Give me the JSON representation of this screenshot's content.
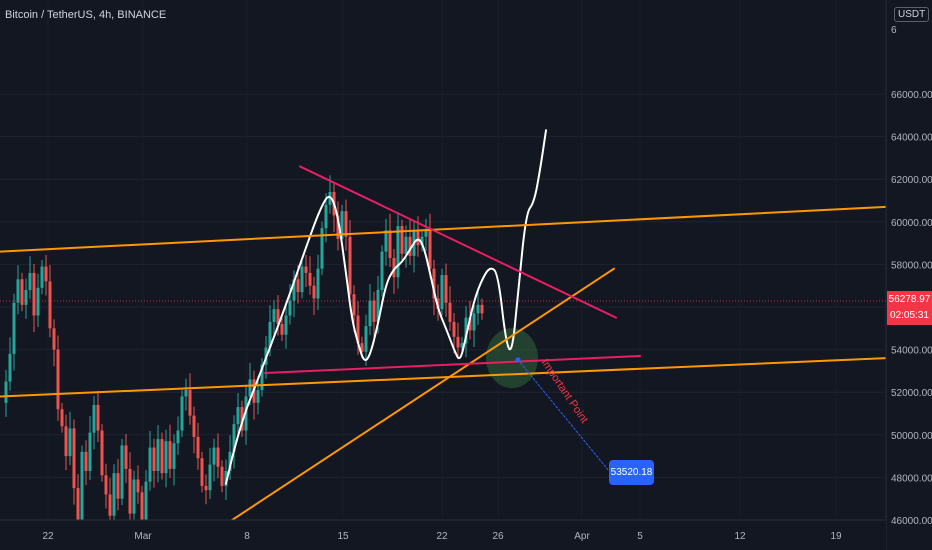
{
  "header": {
    "title": "Bitcoin / TetherUS, 4h, BINANCE",
    "currency_button": "USDT"
  },
  "price_badge": {
    "price": "56278.97",
    "countdown": "02:05:31"
  },
  "annotations": {
    "important_label": "Important Point",
    "target_label": "53520.18"
  },
  "colors": {
    "up": "#26a69a",
    "down": "#ef5350",
    "orange": "#ff9800",
    "pink": "#e91e63",
    "white": "#ffffff",
    "blue": "#2962ff"
  },
  "chart_data": {
    "type": "candlestick",
    "symbol": "BTCUSDT",
    "timeframe": "4h",
    "x_ticks": [
      "22",
      "Mar",
      "8",
      "15",
      "22",
      "26",
      "Apr",
      "5",
      "12",
      "19"
    ],
    "y_ticks": [
      "46000.00",
      "48000.00",
      "50000.00",
      "52000.00",
      "54000.00",
      "56000.00",
      "58000.00",
      "60000.00",
      "62000.00",
      "64000.00",
      "66000.00"
    ],
    "ylim": [
      45000,
      66500
    ],
    "last_price": 56278.97,
    "close_path": [
      [
        2,
        51500
      ],
      [
        6,
        52500
      ],
      [
        10,
        53800
      ],
      [
        14,
        56200
      ],
      [
        18,
        57300
      ],
      [
        22,
        56100
      ],
      [
        26,
        56800
      ],
      [
        30,
        57600
      ],
      [
        34,
        55600
      ],
      [
        38,
        56900
      ],
      [
        42,
        57900
      ],
      [
        46,
        57200
      ],
      [
        50,
        55000
      ],
      [
        54,
        54000
      ],
      [
        58,
        51200
      ],
      [
        62,
        50400
      ],
      [
        66,
        49000
      ],
      [
        70,
        50300
      ],
      [
        74,
        47500
      ],
      [
        78,
        45800
      ],
      [
        82,
        49200
      ],
      [
        86,
        48300
      ],
      [
        90,
        50100
      ],
      [
        94,
        51400
      ],
      [
        98,
        50200
      ],
      [
        102,
        48100
      ],
      [
        106,
        47200
      ],
      [
        110,
        46200
      ],
      [
        114,
        48200
      ],
      [
        118,
        47000
      ],
      [
        122,
        49500
      ],
      [
        126,
        48400
      ],
      [
        130,
        46300
      ],
      [
        134,
        47900
      ],
      [
        138,
        47300
      ],
      [
        142,
        46000
      ],
      [
        146,
        47800
      ],
      [
        150,
        49400
      ],
      [
        154,
        48300
      ],
      [
        158,
        49800
      ],
      [
        162,
        48200
      ],
      [
        166,
        49700
      ],
      [
        170,
        48400
      ],
      [
        174,
        49600
      ],
      [
        178,
        50200
      ],
      [
        182,
        51800
      ],
      [
        186,
        52100
      ],
      [
        190,
        50900
      ],
      [
        194,
        49900
      ],
      [
        198,
        48900
      ],
      [
        202,
        47600
      ],
      [
        206,
        47400
      ],
      [
        210,
        48600
      ],
      [
        214,
        49400
      ],
      [
        218,
        48500
      ],
      [
        222,
        47600
      ],
      [
        226,
        48300
      ],
      [
        230,
        49200
      ],
      [
        234,
        50500
      ],
      [
        238,
        51300
      ],
      [
        242,
        50200
      ],
      [
        246,
        51800
      ],
      [
        250,
        52600
      ],
      [
        254,
        51500
      ],
      [
        258,
        52100
      ],
      [
        262,
        53300
      ],
      [
        266,
        54100
      ],
      [
        270,
        55300
      ],
      [
        274,
        55900
      ],
      [
        278,
        55200
      ],
      [
        282,
        54700
      ],
      [
        286,
        55600
      ],
      [
        290,
        56300
      ],
      [
        294,
        57300
      ],
      [
        298,
        56700
      ],
      [
        302,
        57900
      ],
      [
        306,
        57600
      ],
      [
        310,
        57000
      ],
      [
        314,
        56400
      ],
      [
        318,
        57800
      ],
      [
        322,
        59700
      ],
      [
        326,
        60800
      ],
      [
        330,
        61400
      ],
      [
        334,
        60300
      ],
      [
        338,
        59200
      ],
      [
        342,
        60500
      ],
      [
        346,
        59300
      ],
      [
        350,
        56600
      ],
      [
        354,
        55600
      ],
      [
        358,
        54300
      ],
      [
        362,
        53900
      ],
      [
        366,
        55100
      ],
      [
        370,
        56300
      ],
      [
        374,
        55300
      ],
      [
        378,
        56800
      ],
      [
        382,
        58600
      ],
      [
        386,
        59600
      ],
      [
        390,
        58300
      ],
      [
        394,
        57400
      ],
      [
        398,
        59800
      ],
      [
        402,
        58500
      ],
      [
        406,
        59300
      ],
      [
        410,
        58400
      ],
      [
        414,
        59600
      ],
      [
        418,
        58900
      ],
      [
        422,
        59300
      ],
      [
        426,
        59600
      ],
      [
        430,
        57800
      ],
      [
        434,
        56400
      ],
      [
        438,
        55900
      ],
      [
        442,
        57500
      ],
      [
        446,
        56200
      ],
      [
        450,
        55300
      ],
      [
        454,
        54600
      ],
      [
        458,
        54100
      ],
      [
        462,
        54300
      ],
      [
        466,
        55500
      ],
      [
        470,
        54900
      ],
      [
        474,
        55700
      ],
      [
        478,
        56100
      ],
      [
        482,
        55700
      ]
    ],
    "series": [
      {
        "name": "",
        "kind": "projection-white",
        "points": [
          [
            226,
            47700
          ],
          [
            238,
            50200
          ],
          [
            262,
            53100
          ],
          [
            286,
            56100
          ],
          [
            306,
            58800
          ],
          [
            320,
            60600
          ],
          [
            330,
            61400
          ],
          [
            338,
            60300
          ],
          [
            346,
            57600
          ],
          [
            352,
            55400
          ],
          [
            358,
            54300
          ],
          [
            364,
            53400
          ],
          [
            370,
            53700
          ],
          [
            378,
            55200
          ],
          [
            386,
            57100
          ],
          [
            394,
            57800
          ],
          [
            402,
            58100
          ],
          [
            410,
            58700
          ],
          [
            418,
            59300
          ],
          [
            424,
            58800
          ],
          [
            430,
            57600
          ],
          [
            438,
            55900
          ],
          [
            446,
            55000
          ],
          [
            454,
            54000
          ],
          [
            460,
            53400
          ],
          [
            466,
            54600
          ],
          [
            474,
            56300
          ],
          [
            482,
            57300
          ],
          [
            490,
            57900
          ],
          [
            498,
            57600
          ],
          [
            506,
            54300
          ],
          [
            512,
            53800
          ],
          [
            518,
            56600
          ],
          [
            526,
            60400
          ],
          [
            534,
            60900
          ],
          [
            540,
            62400
          ],
          [
            546,
            64300
          ]
        ]
      },
      {
        "name": "",
        "kind": "upper-channel",
        "points": [
          [
            0,
            58600
          ],
          [
            886,
            60700
          ]
        ]
      },
      {
        "name": "",
        "kind": "lower-channel",
        "points": [
          [
            0,
            51800
          ],
          [
            886,
            53600
          ]
        ]
      },
      {
        "name": "",
        "kind": "ascending-support",
        "points": [
          [
            203,
            45100
          ],
          [
            614,
            57800
          ]
        ]
      },
      {
        "name": "",
        "kind": "descending-resistance",
        "points": [
          [
            300,
            62600
          ],
          [
            616,
            55500
          ]
        ]
      },
      {
        "name": "",
        "kind": "horizontal-support",
        "points": [
          [
            265,
            52900
          ],
          [
            640,
            53700
          ]
        ]
      },
      {
        "name": "",
        "kind": "projection-path",
        "points": [
          [
            518,
            53520.18
          ],
          [
            609,
            48300
          ]
        ]
      }
    ],
    "target_price": 53520.18,
    "annotation_text": "Important Point"
  }
}
